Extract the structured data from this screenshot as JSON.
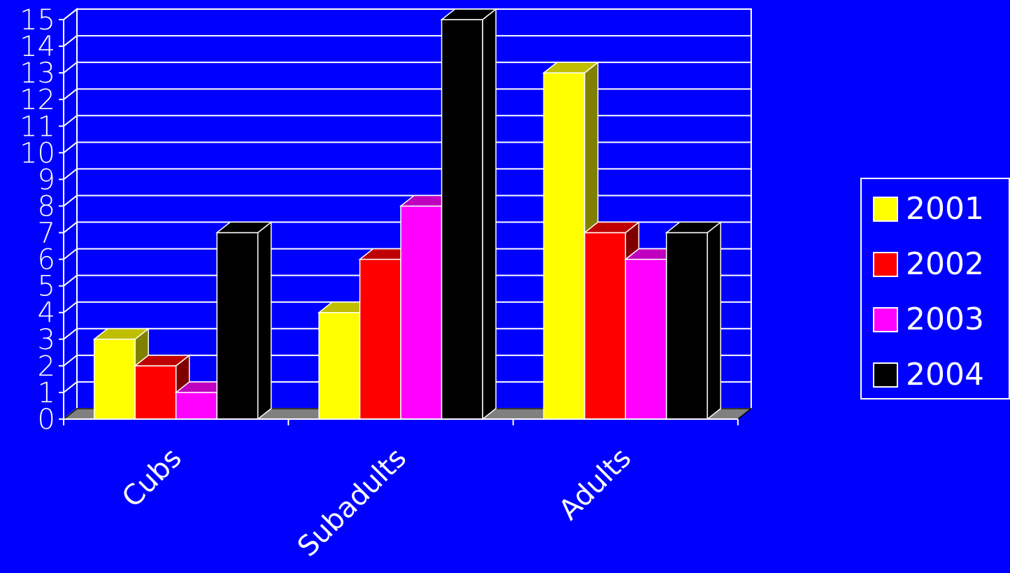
{
  "chart_data": {
    "type": "bar",
    "style": "3d-clustered",
    "title": "",
    "xlabel": "",
    "ylabel": "",
    "categories": [
      "Cubs",
      "Subadults",
      "Adults"
    ],
    "series": [
      {
        "name": "2001",
        "color": "#FFFF00",
        "values": [
          3,
          4,
          13
        ]
      },
      {
        "name": "2002",
        "color": "#FF0000",
        "values": [
          2,
          6,
          7
        ]
      },
      {
        "name": "2003",
        "color": "#FF00FF",
        "values": [
          1,
          8,
          6
        ]
      },
      {
        "name": "2004",
        "color": "#000000",
        "values": [
          7,
          15,
          7
        ]
      }
    ],
    "ylim": [
      0,
      15
    ],
    "yticks": [
      "0",
      "1",
      "2",
      "3",
      "4",
      "5",
      "6",
      "7",
      "8",
      "9",
      "10",
      "11",
      "12",
      "13",
      "14",
      "15"
    ],
    "grid": true,
    "legend_position": "right",
    "background_color": "#0000FF",
    "gridline_color": "#FFFFFF",
    "floor_color": "#808080"
  }
}
